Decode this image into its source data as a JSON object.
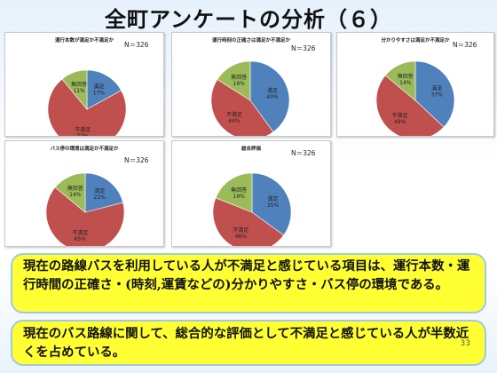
{
  "slide": {
    "title": "全町アンケートの分析（６）",
    "page_number": "33"
  },
  "callouts": [
    {
      "text": "現在の路線バスを利用している人が不満足と感じている項目は、運行本数・運行時間の正確さ・(時刻,運賃などの)分かりやすさ・バス停の環境である。"
    },
    {
      "text": "現在のバス路線に関して、総合的な評価として不満足と感じている人が半数近くを占めている。"
    }
  ],
  "chart_data": [
    {
      "type": "pie",
      "title": "運行本数が満足か不満足か",
      "n_label": "N＝326",
      "slices": [
        {
          "label": "満足",
          "value": 17,
          "pct": "17%",
          "color": "#4f81bd"
        },
        {
          "label": "不満足",
          "value": 72,
          "pct": "72%",
          "color": "#c0504d"
        },
        {
          "label": "無回答",
          "value": 11,
          "pct": "11%",
          "color": "#9bbb59"
        }
      ]
    },
    {
      "type": "pie",
      "title": "運行時刻の正確さは満足か不満足か",
      "n_label": "N＝326",
      "slices": [
        {
          "label": "満足",
          "value": 40,
          "pct": "40%",
          "color": "#4f81bd"
        },
        {
          "label": "不満足",
          "value": 44,
          "pct": "44%",
          "color": "#c0504d"
        },
        {
          "label": "無回答",
          "value": 16,
          "pct": "16%",
          "color": "#9bbb59"
        }
      ]
    },
    {
      "type": "pie",
      "title": "分かりやすさは満足か不満足か",
      "n_label": "N＝326",
      "slices": [
        {
          "label": "満足",
          "value": 37,
          "pct": "37%",
          "color": "#4f81bd"
        },
        {
          "label": "不満足",
          "value": 49,
          "pct": "49%",
          "color": "#c0504d"
        },
        {
          "label": "無回答",
          "value": 14,
          "pct": "14%",
          "color": "#9bbb59"
        }
      ]
    },
    {
      "type": "pie",
      "title": "バス停の環境は満足か不満足か",
      "n_label": "N＝326",
      "slices": [
        {
          "label": "満足",
          "value": 21,
          "pct": "21%",
          "color": "#4f81bd"
        },
        {
          "label": "不満足",
          "value": 65,
          "pct": "65%",
          "color": "#c0504d"
        },
        {
          "label": "無回答",
          "value": 14,
          "pct": "14%",
          "color": "#9bbb59"
        }
      ]
    },
    {
      "type": "pie",
      "title": "総合評価",
      "n_label": "N＝326",
      "slices": [
        {
          "label": "満足",
          "value": 35,
          "pct": "35%",
          "color": "#4f81bd"
        },
        {
          "label": "不満足",
          "value": 46,
          "pct": "46%",
          "color": "#c0504d"
        },
        {
          "label": "無回答",
          "value": 19,
          "pct": "19%",
          "color": "#9bbb59"
        }
      ]
    }
  ]
}
